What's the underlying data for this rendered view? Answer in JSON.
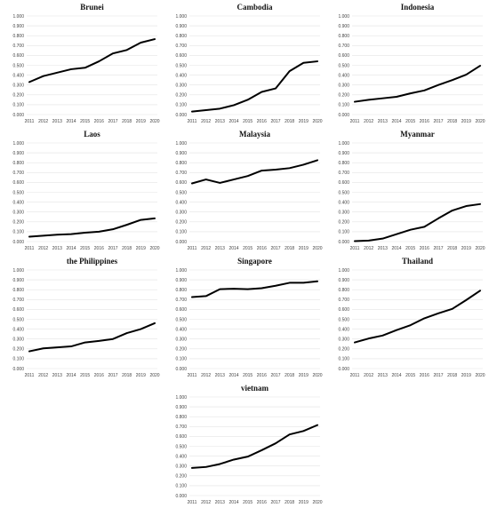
{
  "chart_data": [
    {
      "type": "line",
      "title": "Brunei",
      "categories": [
        "2011",
        "2012",
        "2013",
        "2014",
        "2015",
        "2016",
        "2017",
        "2018",
        "2019",
        "2020"
      ],
      "series": [
        {
          "values": [
            0.33,
            0.39,
            0.425,
            0.46,
            0.475,
            0.54,
            0.62,
            0.655,
            0.73,
            0.765
          ]
        }
      ],
      "ylim": [
        0,
        1.0
      ],
      "yticks": [
        "0.000",
        "0.100",
        "0.200",
        "0.300",
        "0.400",
        "0.500",
        "0.600",
        "0.700",
        "0.800",
        "0.900",
        "1.000"
      ],
      "grid": true
    },
    {
      "type": "line",
      "title": "Cambodia",
      "categories": [
        "2011",
        "2012",
        "2013",
        "2014",
        "2015",
        "2016",
        "2017",
        "2018",
        "2019",
        "2020"
      ],
      "series": [
        {
          "values": [
            0.03,
            0.045,
            0.06,
            0.095,
            0.15,
            0.23,
            0.265,
            0.44,
            0.525,
            0.54
          ]
        }
      ],
      "ylim": [
        0,
        1.0
      ],
      "yticks": [
        "0.000",
        "0.100",
        "0.200",
        "0.300",
        "0.400",
        "0.500",
        "0.600",
        "0.700",
        "0.800",
        "0.900",
        "1.000"
      ],
      "grid": true
    },
    {
      "type": "line",
      "title": "Indonesia",
      "categories": [
        "2011",
        "2012",
        "2013",
        "2014",
        "2015",
        "2016",
        "2017",
        "2018",
        "2019",
        "2020"
      ],
      "series": [
        {
          "values": [
            0.13,
            0.15,
            0.165,
            0.18,
            0.215,
            0.245,
            0.3,
            0.35,
            0.405,
            0.495
          ]
        }
      ],
      "ylim": [
        0,
        1.0
      ],
      "yticks": [
        "0.000",
        "0.100",
        "0.200",
        "0.300",
        "0.400",
        "0.500",
        "0.600",
        "0.700",
        "0.800",
        "0.900",
        "1.000"
      ],
      "grid": true
    },
    {
      "type": "line",
      "title": "Laos",
      "categories": [
        "2011",
        "2012",
        "2013",
        "2014",
        "2015",
        "2016",
        "2017",
        "2018",
        "2019",
        "2020"
      ],
      "series": [
        {
          "values": [
            0.05,
            0.06,
            0.07,
            0.075,
            0.09,
            0.1,
            0.125,
            0.17,
            0.22,
            0.235
          ]
        }
      ],
      "ylim": [
        0,
        1.0
      ],
      "yticks": [
        "0.000",
        "0.100",
        "0.200",
        "0.300",
        "0.400",
        "0.500",
        "0.600",
        "0.700",
        "0.800",
        "0.900",
        "1.000"
      ],
      "grid": true
    },
    {
      "type": "line",
      "title": "Malaysia",
      "categories": [
        "2011",
        "2012",
        "2013",
        "2014",
        "2015",
        "2016",
        "2017",
        "2018",
        "2019",
        "2020"
      ],
      "series": [
        {
          "values": [
            0.59,
            0.63,
            0.595,
            0.63,
            0.665,
            0.72,
            0.73,
            0.745,
            0.78,
            0.825
          ]
        }
      ],
      "ylim": [
        0,
        1.0
      ],
      "yticks": [
        "0.000",
        "0.100",
        "0.200",
        "0.300",
        "0.400",
        "0.500",
        "0.600",
        "0.700",
        "0.800",
        "0.900",
        "1.000"
      ],
      "grid": true
    },
    {
      "type": "line",
      "title": "Myanmar",
      "categories": [
        "2011",
        "2012",
        "2013",
        "2014",
        "2015",
        "2016",
        "2017",
        "2018",
        "2019",
        "2020"
      ],
      "series": [
        {
          "values": [
            0.005,
            0.01,
            0.03,
            0.075,
            0.12,
            0.15,
            0.235,
            0.315,
            0.36,
            0.38
          ]
        }
      ],
      "ylim": [
        0,
        1.0
      ],
      "yticks": [
        "0.000",
        "0.100",
        "0.200",
        "0.300",
        "0.400",
        "0.500",
        "0.600",
        "0.700",
        "0.800",
        "0.900",
        "1.000"
      ],
      "grid": true
    },
    {
      "type": "line",
      "title": "the Philippines",
      "categories": [
        "2011",
        "2012",
        "2013",
        "2014",
        "2015",
        "2016",
        "2017",
        "2018",
        "2019",
        "2020"
      ],
      "series": [
        {
          "values": [
            0.175,
            0.205,
            0.215,
            0.225,
            0.265,
            0.28,
            0.3,
            0.36,
            0.4,
            0.46
          ]
        }
      ],
      "ylim": [
        0,
        1.0
      ],
      "yticks": [
        "0.000",
        "0.100",
        "0.200",
        "0.300",
        "0.400",
        "0.500",
        "0.600",
        "0.700",
        "0.800",
        "0.900",
        "1.000"
      ],
      "grid": true
    },
    {
      "type": "line",
      "title": "Singapore",
      "categories": [
        "2011",
        "2012",
        "2013",
        "2014",
        "2015",
        "2016",
        "2017",
        "2018",
        "2019",
        "2020"
      ],
      "series": [
        {
          "values": [
            0.725,
            0.735,
            0.805,
            0.81,
            0.805,
            0.815,
            0.84,
            0.87,
            0.87,
            0.885
          ]
        }
      ],
      "ylim": [
        0,
        1.0
      ],
      "yticks": [
        "0.000",
        "0.100",
        "0.200",
        "0.300",
        "0.400",
        "0.500",
        "0.600",
        "0.700",
        "0.800",
        "0.900",
        "1.000"
      ],
      "grid": true
    },
    {
      "type": "line",
      "title": "Thailand",
      "categories": [
        "2011",
        "2012",
        "2013",
        "2014",
        "2015",
        "2016",
        "2017",
        "2018",
        "2019",
        "2020"
      ],
      "series": [
        {
          "values": [
            0.265,
            0.305,
            0.335,
            0.39,
            0.44,
            0.51,
            0.56,
            0.605,
            0.695,
            0.79
          ]
        }
      ],
      "ylim": [
        0,
        1.0
      ],
      "yticks": [
        "0.000",
        "0.100",
        "0.200",
        "0.300",
        "0.400",
        "0.500",
        "0.600",
        "0.700",
        "0.800",
        "0.900",
        "1.000"
      ],
      "grid": true
    },
    {
      "type": "line",
      "title": "vietnam",
      "categories": [
        "2011",
        "2012",
        "2013",
        "2014",
        "2015",
        "2016",
        "2017",
        "2018",
        "2019",
        "2020"
      ],
      "series": [
        {
          "values": [
            0.28,
            0.29,
            0.32,
            0.365,
            0.395,
            0.46,
            0.53,
            0.62,
            0.655,
            0.715
          ]
        }
      ],
      "ylim": [
        0,
        1.0
      ],
      "yticks": [
        "0.000",
        "0.100",
        "0.200",
        "0.300",
        "0.400",
        "0.500",
        "0.600",
        "0.700",
        "0.800",
        "0.900",
        "1.000"
      ],
      "grid": true
    }
  ],
  "colors": {
    "line": "#000000",
    "grid": "#e3e3e3",
    "text": "#444444"
  }
}
